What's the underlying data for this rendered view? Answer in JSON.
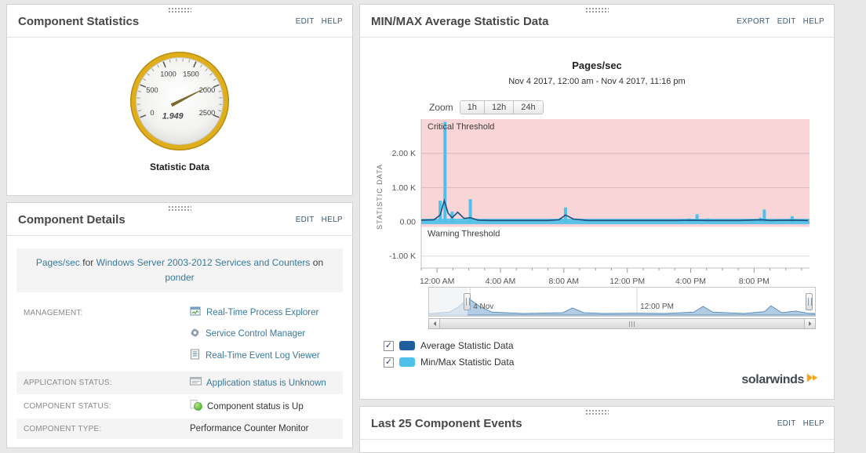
{
  "panels": {
    "component_statistics": {
      "title": "Component Statistics",
      "actions": [
        "EDIT",
        "HELP"
      ],
      "gauge": {
        "min": 0,
        "max": 2500,
        "value": 1949,
        "value_label": "1.949",
        "ticks": [
          "0",
          "500",
          "1000",
          "1500",
          "2000",
          "2500"
        ],
        "ring_color": "#dfae1d",
        "needle_color": "#7b6a2d",
        "caption": "Statistic Data"
      }
    },
    "component_details": {
      "title": "Component Details",
      "actions": [
        "EDIT",
        "HELP"
      ],
      "summary": {
        "component": "Pages/sec",
        "mid1": "for",
        "application": "Windows Server 2003-2012 Services and Counters",
        "mid2": "on",
        "node": "ponder"
      },
      "management": {
        "label": "MANAGEMENT:",
        "links": [
          "Real-Time Process Explorer",
          "Service Control Manager",
          "Real-Time Event Log Viewer"
        ]
      },
      "application_status": {
        "label": "APPLICATION STATUS:",
        "value": "Application status is Unknown"
      },
      "component_status": {
        "label": "COMPONENT STATUS:",
        "value": "Component status is Up"
      },
      "component_type": {
        "label": "COMPONENT TYPE:",
        "value": "Performance Counter Monitor"
      }
    },
    "minmax": {
      "title": "MIN/MAX Average Statistic Data",
      "actions": [
        "EXPORT",
        "EDIT",
        "HELP"
      ],
      "zoom_label": "Zoom",
      "zoom_options": [
        "1h",
        "12h",
        "24h"
      ],
      "legend": [
        {
          "label": "Average Statistic Data",
          "color": "#1f5fa0",
          "checked": true
        },
        {
          "label": "Min/Max Statistic Data",
          "color": "#4ec1ea",
          "checked": true
        }
      ],
      "brand": "solarwinds"
    },
    "last_events": {
      "title": "Last 25 Component Events",
      "actions": [
        "EDIT",
        "HELP"
      ]
    }
  },
  "chart_data": {
    "type": "line+bar",
    "title": "Pages/sec",
    "subtitle": "Nov 4 2017, 12:00 am - Nov 4 2017, 11:16 pm",
    "ylabel": "STATISTIC DATA",
    "xlim": [
      -1,
      23.5
    ],
    "ylim": [
      -1.35,
      3.0
    ],
    "yticks": [
      {
        "v": -1,
        "label": "-1.00 K"
      },
      {
        "v": 0,
        "label": "0.00"
      },
      {
        "v": 1,
        "label": "1.00 K"
      },
      {
        "v": 2,
        "label": "2.00 K"
      }
    ],
    "xticks": [
      {
        "v": 0,
        "label": "12:00 AM"
      },
      {
        "v": 4,
        "label": "4:00 AM"
      },
      {
        "v": 8,
        "label": "8:00 AM"
      },
      {
        "v": 12,
        "label": "12:00 PM"
      },
      {
        "v": 16,
        "label": "4:00 PM"
      },
      {
        "v": 20,
        "label": "8:00 PM"
      }
    ],
    "thresholds": {
      "critical_label": "Critical Threshold",
      "critical_from": -0.15,
      "critical_color": "#f9d5d8",
      "warning_label": "Warning Threshold"
    },
    "minmax_band": {
      "low": -0.07,
      "high": 0.09
    },
    "series": [
      {
        "name": "Min/Max Statistic Data",
        "type": "bar",
        "color": "#4ec1ea",
        "points": [
          [
            0.2,
            0.62
          ],
          [
            0.5,
            2.92
          ],
          [
            0.95,
            0.3
          ],
          [
            2.1,
            0.66
          ],
          [
            7.8,
            0.12
          ],
          [
            8.1,
            0.42
          ],
          [
            15.9,
            0.1
          ],
          [
            16.4,
            0.22
          ],
          [
            17.1,
            0.1
          ],
          [
            20.4,
            0.12
          ],
          [
            20.65,
            0.36
          ],
          [
            22.4,
            0.16
          ]
        ]
      },
      {
        "name": "Average Statistic Data",
        "type": "line",
        "color": "#1c4f7c",
        "points": [
          [
            -1,
            0.05
          ],
          [
            -0.2,
            0.06
          ],
          [
            0.2,
            0.2
          ],
          [
            0.45,
            0.62
          ],
          [
            0.7,
            0.25
          ],
          [
            0.95,
            0.12
          ],
          [
            1.3,
            0.28
          ],
          [
            1.7,
            0.1
          ],
          [
            2.1,
            0.12
          ],
          [
            2.6,
            0.05
          ],
          [
            3.5,
            0.04
          ],
          [
            5,
            0.04
          ],
          [
            7,
            0.04
          ],
          [
            7.7,
            0.06
          ],
          [
            8.1,
            0.2
          ],
          [
            8.6,
            0.08
          ],
          [
            9.5,
            0.04
          ],
          [
            11,
            0.04
          ],
          [
            13,
            0.04
          ],
          [
            15,
            0.04
          ],
          [
            16,
            0.05
          ],
          [
            17,
            0.04
          ],
          [
            19,
            0.04
          ],
          [
            20.5,
            0.06
          ],
          [
            21,
            0.04
          ],
          [
            22.4,
            0.05
          ],
          [
            23.4,
            0.04
          ]
        ]
      }
    ],
    "navigator": {
      "points": [
        [
          -1,
          0.02
        ],
        [
          0.3,
          0.08
        ],
        [
          0.8,
          0.25
        ],
        [
          1.5,
          0.6
        ],
        [
          2.2,
          0.3
        ],
        [
          3,
          0.08
        ],
        [
          5,
          0.03
        ],
        [
          7.5,
          0.06
        ],
        [
          8.1,
          0.24
        ],
        [
          8.8,
          0.06
        ],
        [
          10,
          0.03
        ],
        [
          12,
          0.04
        ],
        [
          14,
          0.03
        ],
        [
          15.8,
          0.08
        ],
        [
          16.4,
          0.3
        ],
        [
          17,
          0.08
        ],
        [
          19,
          0.03
        ],
        [
          20.3,
          0.1
        ],
        [
          20.7,
          0.32
        ],
        [
          21.4,
          0.06
        ],
        [
          22.3,
          0.12
        ],
        [
          23,
          0.04
        ],
        [
          23.5,
          0.03
        ]
      ],
      "labels": [
        {
          "x": 1.6,
          "label": "4 Nov"
        },
        {
          "x": 12.2,
          "label": "12:00 PM"
        }
      ]
    }
  }
}
